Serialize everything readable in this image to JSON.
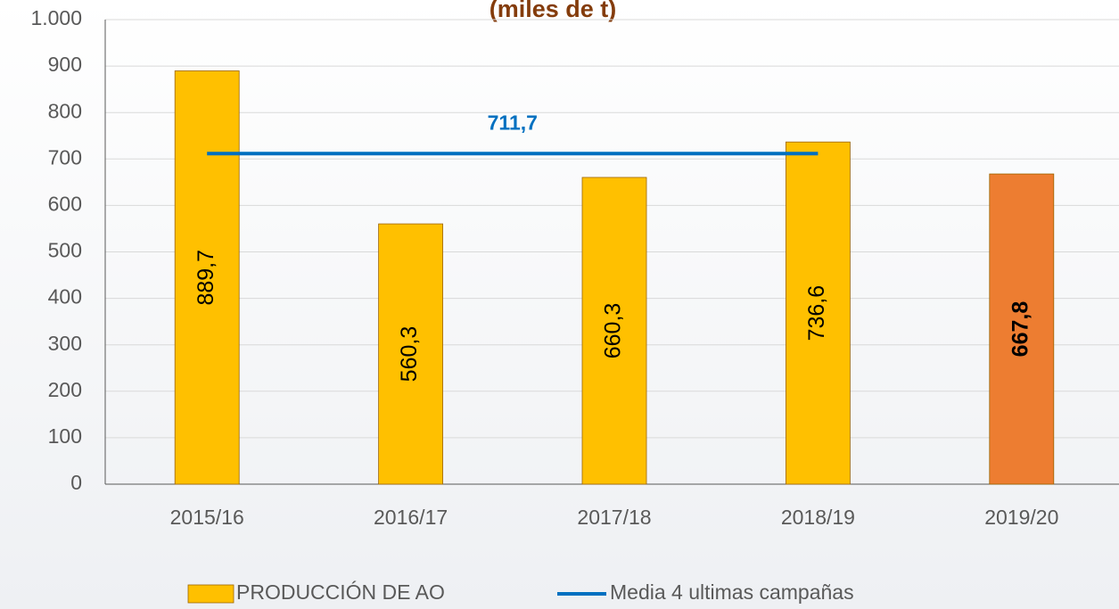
{
  "chart_data": {
    "type": "bar",
    "title": "(miles de t)",
    "categories": [
      "2015/16",
      "2016/17",
      "2017/18",
      "2018/19",
      "2019/20"
    ],
    "series": [
      {
        "name": "PRODUCCIÓN DE AO",
        "type": "bar",
        "color": "#FFC000",
        "colors": [
          "#FFC000",
          "#FFC000",
          "#FFC000",
          "#FFC000",
          "#ED7D31"
        ],
        "values": [
          889.7,
          560.3,
          660.3,
          736.6,
          667.8
        ],
        "value_labels": [
          "889,7",
          "560,3",
          "660,3",
          "736,6",
          "667,8"
        ]
      },
      {
        "name": "Media 4 ultimas campañas",
        "type": "line",
        "color": "#0070C0",
        "values": [
          711.7,
          711.7,
          711.7,
          711.7,
          null
        ],
        "label": "711,7"
      }
    ],
    "ylim": [
      0,
      1000
    ],
    "yticks": [
      0,
      100,
      200,
      300,
      400,
      500,
      600,
      700,
      800,
      900,
      {
        "value": 1000,
        "label": "1.000"
      }
    ],
    "grid": true,
    "legend": "bottom"
  }
}
